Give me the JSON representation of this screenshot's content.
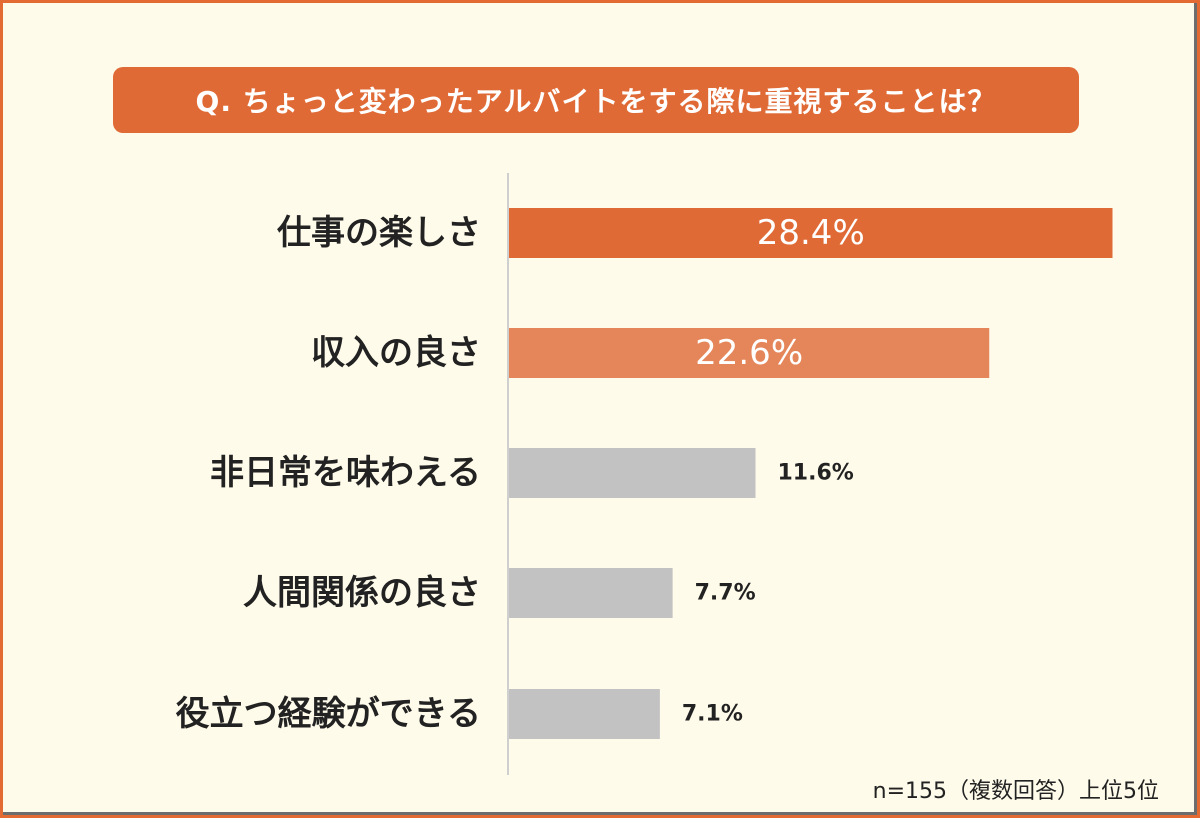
{
  "title": "Q. ちょっと変わったアルバイトをする際に重視することは？",
  "note": "n=155（複数回答）上位5位",
  "colors": {
    "background": "#FEFBEA",
    "border": "#E36A32",
    "title_bg": "#E06A36",
    "rank1": "#E06A36",
    "rank2": "#E5865A",
    "others": "#C2C2C2",
    "axis": "#CFCFCF"
  },
  "chart_data": {
    "type": "bar",
    "orientation": "horizontal",
    "categories": [
      "仕事の楽しさ",
      "収入の良さ",
      "非日常を味わえる",
      "人間関係の良さ",
      "役立つ経験ができる"
    ],
    "values": [
      28.4,
      22.6,
      11.6,
      7.7,
      7.1
    ],
    "value_labels": [
      "28.4%",
      "22.6%",
      "11.6%",
      "7.7%",
      "7.1%"
    ],
    "unit": "%",
    "grid": false,
    "legend": "none"
  }
}
